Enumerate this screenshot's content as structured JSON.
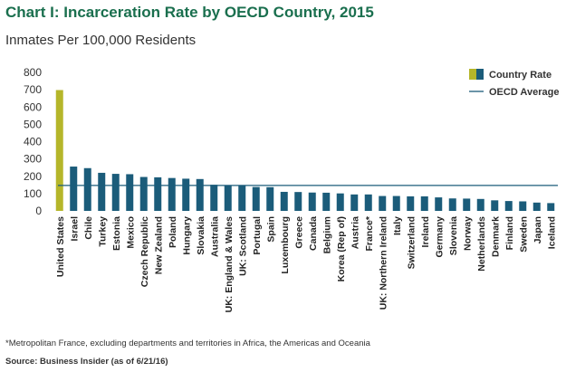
{
  "title": "Chart I: Incarceration Rate by OECD Country, 2015",
  "subtitle": "Inmates Per 100,000 Residents",
  "footnote": "*Metropolitan France, excluding departments and territories in Africa, the Americas and Oceania",
  "source": "Source: Business Insider (as of 6/21/16)",
  "colors": {
    "highlight": "#b5b62a",
    "bar": "#1b5c7a",
    "average_line": "#1b5c7a",
    "title": "#1a6f4e"
  },
  "chart_data": {
    "type": "bar",
    "categories": [
      "United States",
      "Israel",
      "Chile",
      "Turkey",
      "Estonia",
      "Mexico",
      "Czech Republic",
      "New Zealand",
      "Poland",
      "Hungary",
      "Slovakia",
      "Australia",
      "UK: England & Wales",
      "UK: Scotland",
      "Portugal",
      "Spain",
      "Luxembourg",
      "Greece",
      "Canada",
      "Belgium",
      "Korea (Rep of)",
      "Austria",
      "France*",
      "UK: Northern Ireland",
      "Italy",
      "Switzerland",
      "Ireland",
      "Germany",
      "Slovenia",
      "Norway",
      "Netherlands",
      "Denmark",
      "Finland",
      "Sweden",
      "Japan",
      "Iceland"
    ],
    "series": [
      {
        "name": "Country Rate",
        "values": [
          698,
          256,
          247,
          220,
          214,
          212,
          196,
          194,
          190,
          186,
          184,
          151,
          146,
          144,
          138,
          137,
          110,
          109,
          106,
          105,
          101,
          95,
          95,
          86,
          86,
          84,
          84,
          78,
          72,
          71,
          69,
          61,
          57,
          55,
          48,
          45
        ]
      }
    ],
    "highlight_index": 0,
    "reference_lines": [
      {
        "name": "OECD Average",
        "value": 147
      }
    ],
    "ylim": [
      0,
      800
    ],
    "yticks": [
      0,
      100,
      200,
      300,
      400,
      500,
      600,
      700,
      800
    ],
    "xlabel": "",
    "ylabel": "",
    "legend": [
      "Country Rate",
      "OECD Average"
    ],
    "legend_position": "top-right",
    "grid": false
  }
}
